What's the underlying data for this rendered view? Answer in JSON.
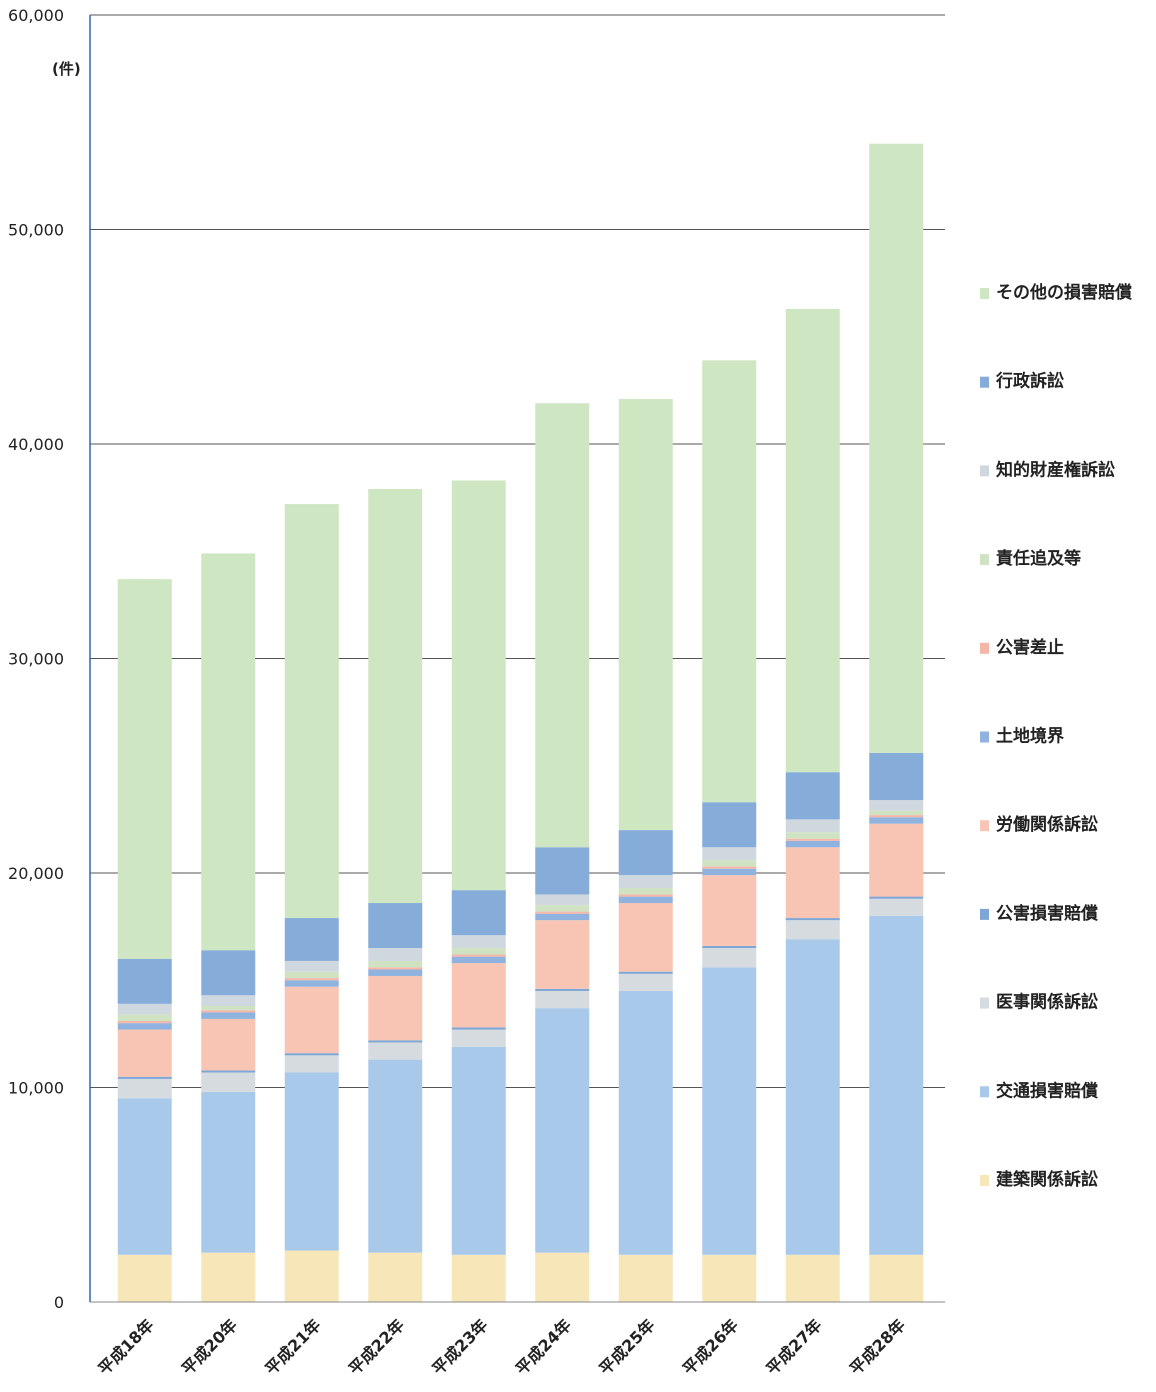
{
  "chart_data": {
    "type": "bar",
    "stacked": true,
    "unit": "(件)",
    "ylim": [
      0,
      60000
    ],
    "yticks": [
      "0",
      "10,000",
      "20,000",
      "30,000",
      "40,000",
      "50,000",
      "60,000"
    ],
    "ytick_values": [
      0,
      10000,
      20000,
      30000,
      40000,
      50000,
      60000
    ],
    "grid": true,
    "legend_position": "right",
    "categories": [
      "平成18年",
      "平成20年",
      "平成21年",
      "平成22年",
      "平成23年",
      "平成24年",
      "平成25年",
      "平成26年",
      "平成27年",
      "平成28年"
    ],
    "series": [
      {
        "name": "建築関係訴訟",
        "color": "#f7e6b8",
        "values": [
          2200,
          2300,
          2400,
          2300,
          2200,
          2300,
          2200,
          2200,
          2200,
          2200
        ]
      },
      {
        "name": "交通損害賠償",
        "color": "#a9c9ea",
        "values": [
          7300,
          7500,
          8300,
          9000,
          9700,
          11400,
          12300,
          13400,
          14700,
          15800
        ]
      },
      {
        "name": "医事関係訴訟",
        "color": "#d6dbe0",
        "values": [
          900,
          900,
          800,
          800,
          800,
          800,
          800,
          900,
          900,
          800
        ]
      },
      {
        "name": "公害損害賠償",
        "color": "#7fa7d6",
        "values": [
          100,
          100,
          100,
          100,
          100,
          100,
          100,
          100,
          100,
          100
        ]
      },
      {
        "name": "労働関係訴訟",
        "color": "#f8c4b3",
        "values": [
          2200,
          2400,
          3100,
          3000,
          3000,
          3200,
          3200,
          3300,
          3300,
          3400
        ]
      },
      {
        "name": "土地境界",
        "color": "#8fb3de",
        "values": [
          300,
          300,
          300,
          300,
          300,
          300,
          300,
          300,
          300,
          300
        ]
      },
      {
        "name": "公害差止",
        "color": "#f4b6a8",
        "values": [
          100,
          100,
          100,
          100,
          100,
          100,
          100,
          100,
          100,
          100
        ]
      },
      {
        "name": "責任追及等",
        "color": "#cfe3c3",
        "values": [
          300,
          200,
          300,
          300,
          300,
          300,
          300,
          300,
          300,
          200
        ]
      },
      {
        "name": "知的財産権訴訟",
        "color": "#d0d8df",
        "values": [
          500,
          500,
          500,
          600,
          600,
          500,
          600,
          600,
          600,
          500
        ]
      },
      {
        "name": "行政訴訟",
        "color": "#86acd9",
        "values": [
          2100,
          2100,
          2000,
          2100,
          2100,
          2200,
          2100,
          2100,
          2200,
          2200
        ]
      },
      {
        "name": "その他の損害賠償",
        "color": "#cfe6c2",
        "values": [
          17700,
          18500,
          19300,
          19300,
          19100,
          20700,
          20100,
          20600,
          21600,
          28400
        ]
      }
    ]
  }
}
